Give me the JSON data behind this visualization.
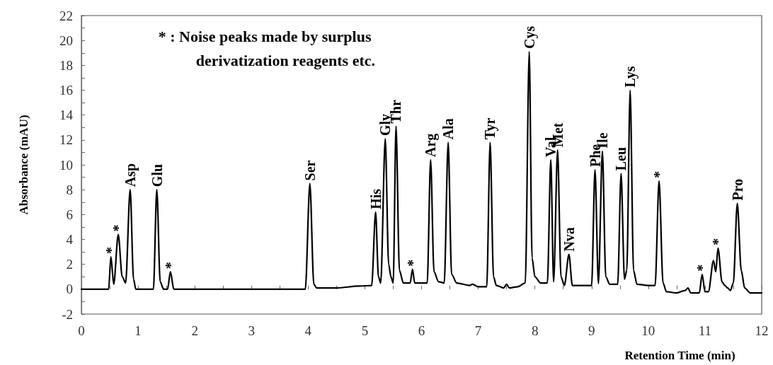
{
  "chart_data": {
    "type": "line",
    "xlabel": "Retention Time (min)",
    "ylabel": "Absorbance (mAU)",
    "x": [
      0,
      0.48,
      0.52,
      0.57,
      0.65,
      0.72,
      0.78,
      0.86,
      0.92,
      0.96,
      1.27,
      1.33,
      1.39,
      1.45,
      1.52,
      1.57,
      1.63,
      3.95,
      4.03,
      4.1,
      4.15,
      4.5,
      4.9,
      5.12,
      5.19,
      5.24,
      5.28,
      5.36,
      5.42,
      5.46,
      5.5,
      5.55,
      5.61,
      5.68,
      5.8,
      5.84,
      5.88,
      6.1,
      6.16,
      6.22,
      6.3,
      6.4,
      6.47,
      6.53,
      6.62,
      6.85,
      6.9,
      7.0,
      7.15,
      7.21,
      7.27,
      7.32,
      7.45,
      7.5,
      7.55,
      7.7,
      7.83,
      7.9,
      7.95,
      8.0,
      8.1,
      8.22,
      8.28,
      8.33,
      8.4,
      8.46,
      8.52,
      8.6,
      8.66,
      8.8,
      9.0,
      9.06,
      9.12,
      9.19,
      9.25,
      9.32,
      9.46,
      9.52,
      9.58,
      9.62,
      9.68,
      9.74,
      9.8,
      10.0,
      10.12,
      10.19,
      10.26,
      10.32,
      10.5,
      10.65,
      10.7,
      10.75,
      10.9,
      10.95,
      11.0,
      11.06,
      11.15,
      11.19,
      11.23,
      11.3,
      11.35,
      11.4,
      11.45,
      11.5,
      11.57,
      11.64,
      11.7,
      11.8,
      12.0
    ],
    "series": [
      {
        "color": "#000000",
        "values": [
          0,
          0,
          2.6,
          0.4,
          4.4,
          1.0,
          0.5,
          8.0,
          0.8,
          0,
          0,
          8.0,
          0.6,
          0,
          0,
          1.4,
          0,
          0,
          8.5,
          0.4,
          0.1,
          0.1,
          0.25,
          0.3,
          6.2,
          1.0,
          0.5,
          12.1,
          2.0,
          1.0,
          0.5,
          13.1,
          1.5,
          0.5,
          0.5,
          1.6,
          0.5,
          0.5,
          10.4,
          1.4,
          0.6,
          0.5,
          11.8,
          1.2,
          0.5,
          0.3,
          0.4,
          0.2,
          0.2,
          11.8,
          1.0,
          0.3,
          0.1,
          0.4,
          0.1,
          0.2,
          0.5,
          19.1,
          2.5,
          1.0,
          0.5,
          0.5,
          10.4,
          0.6,
          11.2,
          1.0,
          0.3,
          2.8,
          0.3,
          0.3,
          0.3,
          9.6,
          0.45,
          11.1,
          1.0,
          0.4,
          0.4,
          9.3,
          0.8,
          1.5,
          16.0,
          1.5,
          0.4,
          0.3,
          0.3,
          8.7,
          0.5,
          -0.2,
          -0.3,
          -0.1,
          0.1,
          -0.3,
          -0.3,
          1.2,
          -0.2,
          -0.2,
          2.3,
          1.4,
          3.3,
          0.6,
          0.3,
          0.1,
          -0.1,
          0.5,
          6.9,
          1.5,
          0.1,
          -0.3,
          -0.3
        ]
      }
    ],
    "xlim": [
      0,
      12
    ],
    "xticks": [
      0,
      {
        "value": 0.5,
        "label": null
      },
      1,
      {
        "value": 1.5,
        "label": null
      },
      2,
      {
        "value": 2.5,
        "label": null
      },
      3,
      {
        "value": 3.5,
        "label": null
      },
      4,
      {
        "value": 4.5,
        "label": null
      },
      5,
      {
        "value": 5.5,
        "label": null
      },
      6,
      {
        "value": 6.5,
        "label": null
      },
      7,
      {
        "value": 7.5,
        "label": null
      },
      8,
      {
        "value": 8.5,
        "label": null
      },
      9,
      {
        "value": 9.5,
        "label": null
      },
      10,
      {
        "value": 10.5,
        "label": null
      },
      11,
      {
        "value": 11.5,
        "label": null
      },
      12
    ],
    "ylim": [
      -2,
      22
    ],
    "yticks": [
      -2,
      {
        "value": -1,
        "label": null
      },
      0,
      {
        "value": 1,
        "label": null
      },
      2,
      {
        "value": 3,
        "label": null
      },
      4,
      {
        "value": 5,
        "label": null
      },
      6,
      {
        "value": 7,
        "label": null
      },
      8,
      {
        "value": 9,
        "label": null
      },
      10,
      {
        "value": 11,
        "label": null
      },
      12,
      {
        "value": 13,
        "label": null
      },
      14,
      {
        "value": 15,
        "label": null
      },
      16,
      {
        "value": 17,
        "label": null
      },
      18,
      {
        "value": 19,
        "label": null
      },
      20,
      {
        "value": 21,
        "label": null
      },
      22
    ],
    "grid": false,
    "marker": "none",
    "line_style": "solid",
    "annotations": [
      "* : Noise peaks made by surplus derivatization reagents etc.",
      {
        "text": "*",
        "x": 0.52,
        "y": 2.6
      },
      {
        "text": "*",
        "x": 0.65,
        "y": 4.4
      },
      {
        "text": "Asp",
        "x": 0.86,
        "y": 8.0
      },
      {
        "text": "Glu",
        "x": 1.33,
        "y": 8.0
      },
      {
        "text": "*",
        "x": 1.57,
        "y": 1.4
      },
      {
        "text": "Ser",
        "x": 4.03,
        "y": 8.5
      },
      {
        "text": "His",
        "x": 5.19,
        "y": 6.2
      },
      {
        "text": "Gly",
        "x": 5.36,
        "y": 12.1
      },
      {
        "text": "Thr",
        "x": 5.55,
        "y": 13.1
      },
      {
        "text": "*",
        "x": 5.84,
        "y": 1.6
      },
      {
        "text": "Arg",
        "x": 6.16,
        "y": 10.4
      },
      {
        "text": "Ala",
        "x": 6.47,
        "y": 11.8
      },
      {
        "text": "Tyr",
        "x": 7.21,
        "y": 11.8
      },
      {
        "text": "Cys",
        "x": 7.9,
        "y": 19.1
      },
      {
        "text": "Val",
        "x": 8.28,
        "y": 10.4
      },
      {
        "text": "Met",
        "x": 8.4,
        "y": 11.2
      },
      {
        "text": "Nva",
        "x": 8.6,
        "y": 2.8
      },
      {
        "text": "Phe",
        "x": 9.06,
        "y": 9.6
      },
      {
        "text": "Ile",
        "x": 9.19,
        "y": 11.1
      },
      {
        "text": "Leu",
        "x": 9.52,
        "y": 9.3
      },
      {
        "text": "Lys",
        "x": 9.68,
        "y": 16.0
      },
      {
        "text": "*",
        "x": 10.19,
        "y": 8.7
      },
      {
        "text": "*",
        "x": 10.95,
        "y": 1.2
      },
      {
        "text": "*",
        "x": 11.23,
        "y": 3.3
      },
      {
        "text": "Pro",
        "x": 11.57,
        "y": 6.9
      }
    ]
  }
}
